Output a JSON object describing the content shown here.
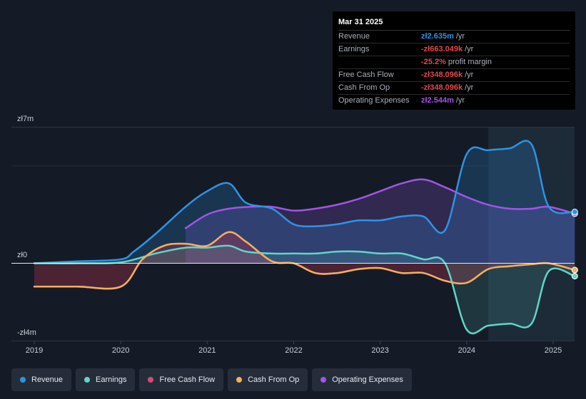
{
  "chart_data": {
    "type": "area",
    "y_axis_labels": {
      "top": "zł7m",
      "zero": "zł0",
      "bottom": "-zł4m"
    },
    "ylim": [
      -4,
      7
    ],
    "xlim": [
      2018.75,
      2025.25
    ],
    "x_ticks": [
      {
        "value": 2019,
        "label": "2019"
      },
      {
        "value": 2020,
        "label": "2020"
      },
      {
        "value": 2021,
        "label": "2021"
      },
      {
        "value": 2022,
        "label": "2022"
      },
      {
        "value": 2023,
        "label": "2023"
      },
      {
        "value": 2024,
        "label": "2024"
      },
      {
        "value": 2025,
        "label": "2025"
      }
    ],
    "highlight_from": 2024.25,
    "series": [
      {
        "name": "Revenue",
        "color": "#2e93e6",
        "fill": "#2e93e6",
        "fill_opacity": 0.22,
        "x": [
          2019.0,
          2019.5,
          2020.0,
          2020.15,
          2020.4,
          2020.75,
          2021.0,
          2021.25,
          2021.45,
          2021.75,
          2022.0,
          2022.25,
          2022.5,
          2022.75,
          2023.0,
          2023.25,
          2023.5,
          2023.75,
          2024.0,
          2024.25,
          2024.5,
          2024.75,
          2024.95,
          2025.25
        ],
        "values": [
          0.0,
          0.1,
          0.2,
          0.6,
          1.5,
          2.9,
          3.7,
          4.1,
          3.1,
          2.8,
          2.0,
          1.9,
          2.0,
          2.2,
          2.2,
          2.4,
          2.4,
          1.7,
          5.6,
          5.8,
          5.9,
          6.1,
          2.9,
          2.635
        ]
      },
      {
        "name": "Earnings",
        "color": "#5fd6c8",
        "fill": "#5fd6c8",
        "fill_opacity": 0.15,
        "x": [
          2019.0,
          2019.5,
          2020.0,
          2020.4,
          2020.75,
          2021.0,
          2021.25,
          2021.45,
          2021.75,
          2022.0,
          2022.25,
          2022.5,
          2022.75,
          2023.0,
          2023.25,
          2023.5,
          2023.75,
          2024.0,
          2024.25,
          2024.5,
          2024.75,
          2024.95,
          2025.25
        ],
        "values": [
          0.0,
          0.0,
          0.05,
          0.5,
          0.8,
          0.8,
          0.9,
          0.6,
          0.5,
          0.5,
          0.5,
          0.6,
          0.6,
          0.5,
          0.5,
          0.2,
          0.0,
          -3.4,
          -3.2,
          -3.1,
          -3.1,
          -0.4,
          -0.663
        ]
      },
      {
        "name": "Free Cash Flow",
        "color": "#d9487c",
        "fill": "#b3344a",
        "fill_opacity": 0.35,
        "x": [
          2019.0,
          2019.5,
          2020.0,
          2020.25,
          2020.5,
          2020.75,
          2021.0,
          2021.25,
          2021.45,
          2021.75,
          2022.0,
          2022.25,
          2022.5,
          2022.75,
          2023.0,
          2023.25,
          2023.5,
          2023.75,
          2024.0,
          2024.25,
          2024.5,
          2024.75,
          2024.95,
          2025.25
        ],
        "values": [
          -1.2,
          -1.2,
          -1.2,
          0.2,
          0.9,
          1.0,
          0.9,
          1.6,
          1.1,
          0.1,
          0.0,
          -0.5,
          -0.5,
          -0.3,
          -0.25,
          -0.5,
          -0.5,
          -0.9,
          -1.0,
          -0.3,
          -0.15,
          -0.05,
          0.0,
          -0.348
        ]
      },
      {
        "name": "Cash From Op",
        "color": "#f0b060",
        "fill": "#f0b060",
        "fill_opacity": 0.0,
        "x": [
          2019.0,
          2019.5,
          2020.0,
          2020.25,
          2020.5,
          2020.75,
          2021.0,
          2021.25,
          2021.45,
          2021.75,
          2022.0,
          2022.25,
          2022.5,
          2022.75,
          2023.0,
          2023.25,
          2023.5,
          2023.75,
          2024.0,
          2024.25,
          2024.5,
          2024.75,
          2024.95,
          2025.25
        ],
        "values": [
          -1.2,
          -1.2,
          -1.2,
          0.2,
          0.9,
          1.0,
          0.9,
          1.6,
          1.1,
          0.1,
          0.0,
          -0.5,
          -0.5,
          -0.3,
          -0.25,
          -0.5,
          -0.5,
          -0.9,
          -1.0,
          -0.3,
          -0.15,
          -0.05,
          0.0,
          -0.348
        ]
      },
      {
        "name": "Operating Expenses",
        "color": "#a254e8",
        "fill": "#7a4fc0",
        "fill_opacity": 0.28,
        "x": [
          2020.75,
          2021.0,
          2021.25,
          2021.5,
          2021.75,
          2022.0,
          2022.25,
          2022.5,
          2022.75,
          2023.0,
          2023.25,
          2023.5,
          2023.75,
          2024.0,
          2024.25,
          2024.5,
          2024.75,
          2024.95,
          2025.25
        ],
        "values": [
          1.8,
          2.5,
          2.8,
          2.9,
          2.9,
          2.7,
          2.8,
          3.0,
          3.3,
          3.7,
          4.1,
          4.3,
          3.9,
          3.4,
          3.0,
          2.8,
          2.8,
          2.9,
          2.544
        ]
      }
    ]
  },
  "tooltip": {
    "date": "Mar 31 2025",
    "rows": [
      {
        "label": "Revenue",
        "value": "zł2.635m",
        "unit": "/yr",
        "color": "#2e93e6"
      },
      {
        "label": "Earnings",
        "value": "-zł663.049k",
        "unit": "/yr",
        "color": "#e5484d"
      },
      {
        "label": "",
        "value": "-25.2%",
        "unit": "profit margin",
        "color": "#e5484d"
      },
      {
        "label": "Free Cash Flow",
        "value": "-zł348.096k",
        "unit": "/yr",
        "color": "#e5484d"
      },
      {
        "label": "Cash From Op",
        "value": "-zł348.096k",
        "unit": "/yr",
        "color": "#e5484d"
      },
      {
        "label": "Operating Expenses",
        "value": "zł2.544m",
        "unit": "/yr",
        "color": "#a254e8"
      }
    ]
  },
  "legend": [
    {
      "label": "Revenue",
      "color": "#2e93e6"
    },
    {
      "label": "Earnings",
      "color": "#5fd6c8"
    },
    {
      "label": "Free Cash Flow",
      "color": "#d9487c"
    },
    {
      "label": "Cash From Op",
      "color": "#f0b060"
    },
    {
      "label": "Operating Expenses",
      "color": "#a254e8"
    }
  ]
}
